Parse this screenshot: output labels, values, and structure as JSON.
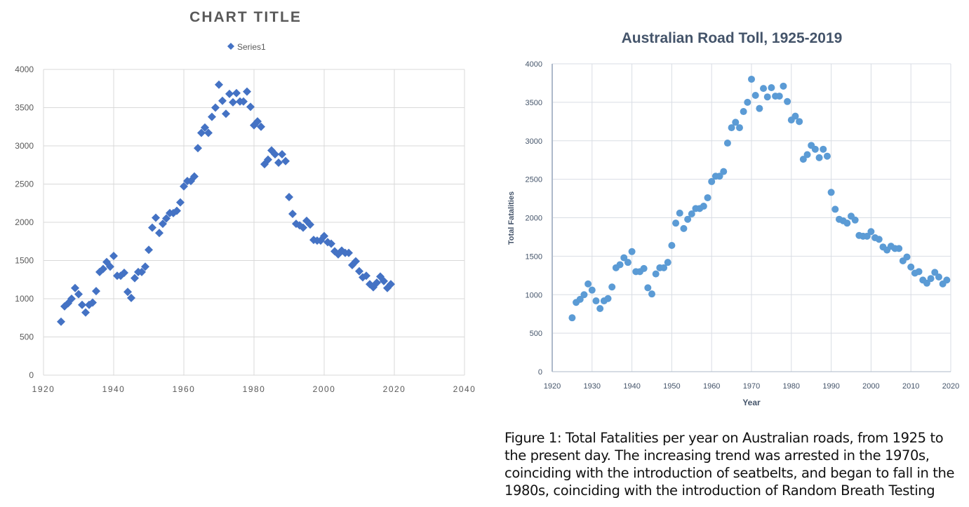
{
  "chart_data": [
    {
      "type": "scatter",
      "title": "CHART TITLE",
      "legend": {
        "entries": [
          "Series1"
        ],
        "placement": "top"
      },
      "xlabel": "",
      "ylabel": "",
      "xlim": [
        1920,
        2040
      ],
      "ylim": [
        0,
        4000
      ],
      "xticks": [
        1920,
        1940,
        1960,
        1980,
        2000,
        2020,
        2040
      ],
      "yticks": [
        0,
        500,
        1000,
        1500,
        2000,
        2500,
        3000,
        3500,
        4000
      ],
      "grid": true,
      "marker": "diamond",
      "color": "#4472C4"
    },
    {
      "type": "scatter",
      "title": "Australian Road Toll, 1925-2019",
      "xlabel": "Year",
      "ylabel": "Total Fatalities",
      "xlim": [
        1920,
        2020
      ],
      "ylim": [
        0,
        4000
      ],
      "xticks": [
        1920,
        1930,
        1940,
        1950,
        1960,
        1970,
        1980,
        1990,
        2000,
        2010,
        2020
      ],
      "yticks": [
        0,
        500,
        1000,
        1500,
        2000,
        2500,
        3000,
        3500,
        4000
      ],
      "grid": true,
      "marker": "circle",
      "color": "#5B9BD5"
    }
  ],
  "series": {
    "x_start": 1925,
    "values": [
      700,
      900,
      940,
      1000,
      1140,
      1060,
      920,
      820,
      920,
      950,
      1100,
      1350,
      1390,
      1480,
      1420,
      1560,
      1300,
      1300,
      1340,
      1090,
      1010,
      1270,
      1350,
      1350,
      1420,
      1640,
      1930,
      2060,
      1860,
      1980,
      2050,
      2120,
      2120,
      2150,
      2260,
      2470,
      2540,
      2540,
      2600,
      2970,
      3170,
      3240,
      3170,
      3380,
      3500,
      3800,
      3590,
      3420,
      3680,
      3570,
      3690,
      3580,
      3580,
      3710,
      3510,
      3270,
      3320,
      3250,
      2760,
      2820,
      2940,
      2890,
      2780,
      2890,
      2800,
      2330,
      2110,
      1980,
      1960,
      1930,
      2020,
      1970,
      1770,
      1760,
      1760,
      1820,
      1740,
      1720,
      1620,
      1580,
      1630,
      1600,
      1600,
      1440,
      1490,
      1360,
      1280,
      1300,
      1190,
      1150,
      1210,
      1290,
      1230,
      1140,
      1190
    ]
  },
  "caption": "Figure 1: Total Fatalities per year on Australian roads, from 1925 to the present day.  The increasing trend was arrested in the 1970s, coinciding with the introduction of seatbelts, and began to fall in the 1980s, coinciding with the introduction of Random Breath Testing"
}
